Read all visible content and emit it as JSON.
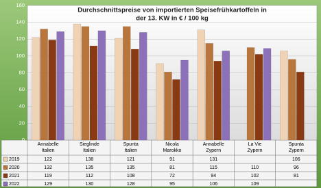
{
  "chart_data": {
    "type": "bar",
    "title": [
      "Durchschnittspreise von importierten Speisefrühkartoffeln in",
      "der 13. KW in € / 100 kg"
    ],
    "categories": [
      [
        "Annabelle",
        "Italien"
      ],
      [
        "Sieglinde",
        "Italien"
      ],
      [
        "Spunta",
        "Italien"
      ],
      [
        "Nicola",
        "Marokko"
      ],
      [
        "Annabelle",
        "Zypern"
      ],
      [
        "La Vie",
        "Zypern"
      ],
      [
        "Spunta",
        "Zypern"
      ]
    ],
    "series": [
      {
        "name": "2019",
        "color": "#f0d2b4",
        "values": [
          122,
          138,
          121,
          91,
          131,
          null,
          106
        ]
      },
      {
        "name": "2020",
        "color": "#b8763c",
        "values": [
          132,
          135,
          135,
          81,
          115,
          110,
          96
        ]
      },
      {
        "name": "2021",
        "color": "#8a3a12",
        "values": [
          119,
          112,
          108,
          72,
          94,
          102,
          81
        ]
      },
      {
        "name": "2022",
        "color": "#8c70ba",
        "values": [
          129,
          130,
          128,
          95,
          106,
          109,
          null
        ]
      }
    ],
    "ylim": [
      0,
      160
    ],
    "yticks": [
      0,
      20,
      40,
      60,
      80,
      100,
      120,
      140,
      160
    ],
    "grid": true
  }
}
